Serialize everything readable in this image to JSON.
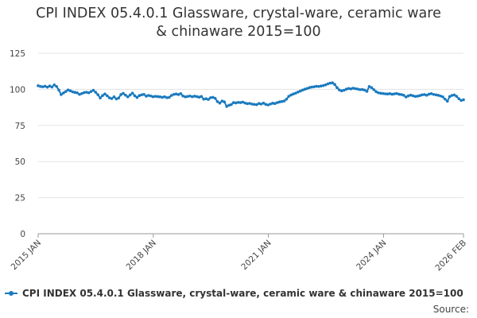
{
  "chart_data": {
    "type": "line",
    "title": "CPI INDEX 05.4.0.1 Glassware, crystal-ware, ceramic ware & chinaware 2015=100",
    "title_lines": [
      "CPI INDEX 05.4.0.1 Glassware, crystal-ware, ceramic ware",
      "& chinaware 2015=100"
    ],
    "xlabel": "",
    "ylabel": "",
    "ylim": [
      0,
      125
    ],
    "yticks": [
      0,
      25,
      50,
      75,
      100,
      125
    ],
    "x_start": "2015 JAN",
    "x_end": "2026 FEB",
    "xticks": [
      "2015 JAN",
      "2018 JAN",
      "2021 JAN",
      "2024 JAN",
      "2026 FEB"
    ],
    "grid": true,
    "legend_position": "bottom-left",
    "color": "#1a7abf",
    "series": [
      {
        "name": "CPI INDEX 05.4.0.1 Glassware, crystal-ware, ceramic ware & chinaware 2015=100",
        "values": [
          102.5,
          102.0,
          101.8,
          102.2,
          101.5,
          102.3,
          101.6,
          103.1,
          102.0,
          99.5,
          96.4,
          97.5,
          98.5,
          99.6,
          99.0,
          98.3,
          97.9,
          97.6,
          96.5,
          97.1,
          97.8,
          98.0,
          97.6,
          98.5,
          99.4,
          98.0,
          96.3,
          94.0,
          95.7,
          96.8,
          95.6,
          94.1,
          93.6,
          94.8,
          93.4,
          94.0,
          96.4,
          97.2,
          96.0,
          94.8,
          96.1,
          97.4,
          95.6,
          94.4,
          95.7,
          96.2,
          96.5,
          95.3,
          95.8,
          95.4,
          94.9,
          95.2,
          95.0,
          94.8,
          94.5,
          94.9,
          94.2,
          94.5,
          95.8,
          96.5,
          96.8,
          96.4,
          97.0,
          95.4,
          94.8,
          95.1,
          95.4,
          94.9,
          95.3,
          95.0,
          94.6,
          95.1,
          93.2,
          93.5,
          93.0,
          94.2,
          94.5,
          93.8,
          91.5,
          90.5,
          91.9,
          91.3,
          88.2,
          89.0,
          89.5,
          90.8,
          90.6,
          91.0,
          90.8,
          91.2,
          90.5,
          90.1,
          90.3,
          89.8,
          89.6,
          89.4,
          90.2,
          89.8,
          90.5,
          89.6,
          89.2,
          89.8,
          90.4,
          90.2,
          90.8,
          91.3,
          91.6,
          91.9,
          93.2,
          95.2,
          96.1,
          96.8,
          97.4,
          98.1,
          98.8,
          99.5,
          100.1,
          100.6,
          101.2,
          101.6,
          101.8,
          102.1,
          102.0,
          102.3,
          102.6,
          103.1,
          103.8,
          104.3,
          104.5,
          103.4,
          101.2,
          99.6,
          99.0,
          99.4,
          100.1,
          100.6,
          100.3,
          100.8,
          100.5,
          100.2,
          99.8,
          99.9,
          99.5,
          98.6,
          102.0,
          101.2,
          99.8,
          98.4,
          97.6,
          97.3,
          97.1,
          96.9,
          96.8,
          97.0,
          96.6,
          96.9,
          97.1,
          96.6,
          96.4,
          95.9,
          94.7,
          95.5,
          96.0,
          95.6,
          95.1,
          95.3,
          95.7,
          96.2,
          96.4,
          95.9,
          96.7,
          97.0,
          96.5,
          96.2,
          95.9,
          95.4,
          94.8,
          93.2,
          91.8,
          95.0,
          95.8,
          96.1,
          95.2,
          93.5,
          92.3,
          92.8
        ]
      }
    ]
  },
  "legend": {
    "label": "CPI INDEX 05.4.0.1 Glassware, crystal-ware, ceramic ware & chinaware 2015=100"
  },
  "footer": {
    "source_label": "Source:"
  }
}
